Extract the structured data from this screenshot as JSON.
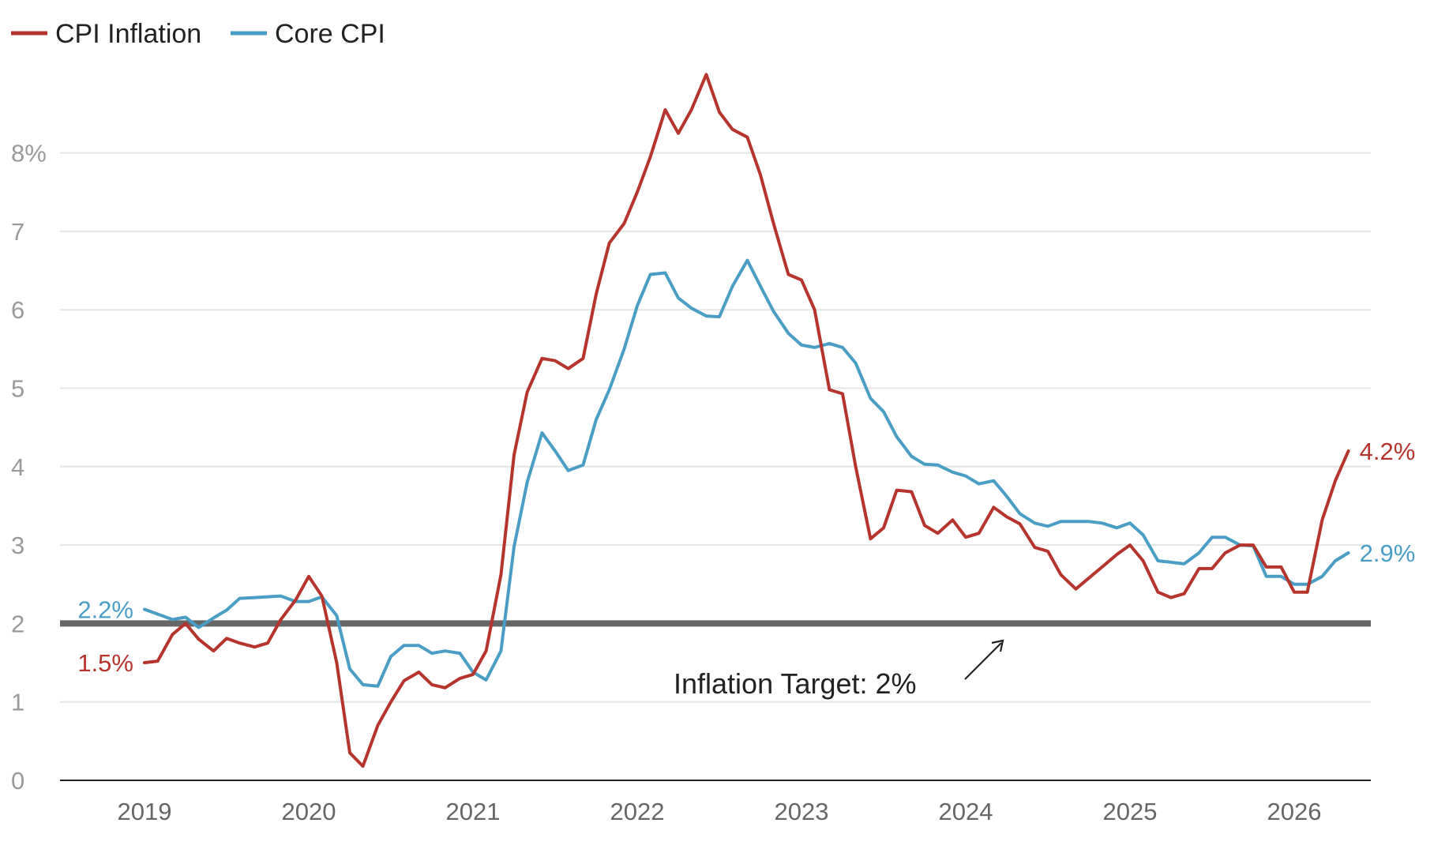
{
  "chart_data": {
    "type": "line",
    "legend_position": "top-left",
    "grid": true,
    "ylim": [
      0,
      9.2
    ],
    "y_ticks": [
      0,
      1,
      2,
      3,
      4,
      5,
      6,
      7,
      8
    ],
    "y_tick_labels": [
      "0",
      "1",
      "2",
      "3",
      "4",
      "5",
      "6",
      "7",
      "8%"
    ],
    "xlim": [
      2018.5,
      2026.5
    ],
    "x_ticks": [
      2019,
      2020,
      2021,
      2022,
      2023,
      2024,
      2025,
      2026
    ],
    "x_tick_labels": [
      "2019",
      "2020",
      "2021",
      "2022",
      "2023",
      "2024",
      "2025",
      "2026"
    ],
    "target": {
      "value": 2,
      "label": "Inflation Target: 2%",
      "color": "#666666"
    },
    "series": [
      {
        "name": "CPI Inflation",
        "color": "#b5342c",
        "end_label": "4.2%",
        "start_label": "1.5%",
        "points": [
          [
            2019.0,
            1.5
          ],
          [
            2019.08,
            1.52
          ],
          [
            2019.17,
            1.86
          ],
          [
            2019.25,
            2.0
          ],
          [
            2019.33,
            1.8
          ],
          [
            2019.42,
            1.65
          ],
          [
            2019.5,
            1.81
          ],
          [
            2019.58,
            1.75
          ],
          [
            2019.67,
            1.7
          ],
          [
            2019.75,
            1.75
          ],
          [
            2019.83,
            2.05
          ],
          [
            2019.92,
            2.3
          ],
          [
            2020.0,
            2.6
          ],
          [
            2020.08,
            2.35
          ],
          [
            2020.17,
            1.5
          ],
          [
            2020.25,
            0.35
          ],
          [
            2020.33,
            0.18
          ],
          [
            2020.42,
            0.7
          ],
          [
            2020.5,
            1.0
          ],
          [
            2020.58,
            1.27
          ],
          [
            2020.67,
            1.38
          ],
          [
            2020.75,
            1.22
          ],
          [
            2020.83,
            1.18
          ],
          [
            2020.92,
            1.3
          ],
          [
            2021.0,
            1.35
          ],
          [
            2021.08,
            1.65
          ],
          [
            2021.17,
            2.62
          ],
          [
            2021.25,
            4.15
          ],
          [
            2021.33,
            4.95
          ],
          [
            2021.42,
            5.38
          ],
          [
            2021.5,
            5.35
          ],
          [
            2021.58,
            5.25
          ],
          [
            2021.67,
            5.38
          ],
          [
            2021.75,
            6.2
          ],
          [
            2021.83,
            6.85
          ],
          [
            2021.92,
            7.1
          ],
          [
            2022.0,
            7.5
          ],
          [
            2022.08,
            7.95
          ],
          [
            2022.17,
            8.55
          ],
          [
            2022.25,
            8.25
          ],
          [
            2022.33,
            8.55
          ],
          [
            2022.42,
            9.0
          ],
          [
            2022.5,
            8.52
          ],
          [
            2022.58,
            8.3
          ],
          [
            2022.67,
            8.2
          ],
          [
            2022.75,
            7.72
          ],
          [
            2022.83,
            7.1
          ],
          [
            2022.92,
            6.45
          ],
          [
            2023.0,
            6.38
          ],
          [
            2023.08,
            6.0
          ],
          [
            2023.17,
            4.98
          ],
          [
            2023.25,
            4.93
          ],
          [
            2023.33,
            4.0
          ],
          [
            2023.42,
            3.08
          ],
          [
            2023.5,
            3.22
          ],
          [
            2023.58,
            3.7
          ],
          [
            2023.67,
            3.68
          ],
          [
            2023.75,
            3.25
          ],
          [
            2023.83,
            3.15
          ],
          [
            2023.92,
            3.32
          ],
          [
            2024.0,
            3.1
          ],
          [
            2024.08,
            3.15
          ],
          [
            2024.17,
            3.48
          ],
          [
            2024.25,
            3.36
          ],
          [
            2024.33,
            3.27
          ],
          [
            2024.42,
            2.97
          ],
          [
            2024.5,
            2.92
          ],
          [
            2024.58,
            2.62
          ],
          [
            2024.67,
            2.44
          ],
          [
            2024.75,
            2.58
          ],
          [
            2024.83,
            2.72
          ],
          [
            2024.92,
            2.88
          ],
          [
            2025.0,
            3.0
          ],
          [
            2025.08,
            2.8
          ],
          [
            2025.17,
            2.4
          ],
          [
            2025.25,
            2.33
          ],
          [
            2025.33,
            2.38
          ],
          [
            2025.42,
            2.7
          ],
          [
            2025.5,
            2.7
          ],
          [
            2025.58,
            2.9
          ],
          [
            2025.67,
            3.0
          ],
          [
            2025.75,
            3.0
          ],
          [
            2025.83,
            2.72
          ],
          [
            2025.92,
            2.72
          ],
          [
            2026.0,
            2.4
          ],
          [
            2026.08,
            2.4
          ],
          [
            2026.17,
            3.32
          ],
          [
            2026.25,
            3.82
          ],
          [
            2026.33,
            4.2
          ]
        ]
      },
      {
        "name": "Core CPI",
        "color": "#4a9ec6",
        "end_label": "2.9%",
        "start_label": "2.2%",
        "points": [
          [
            2019.0,
            2.18
          ],
          [
            2019.08,
            2.12
          ],
          [
            2019.17,
            2.05
          ],
          [
            2019.25,
            2.08
          ],
          [
            2019.33,
            1.95
          ],
          [
            2019.42,
            2.07
          ],
          [
            2019.5,
            2.17
          ],
          [
            2019.58,
            2.32
          ],
          [
            2019.67,
            2.33
          ],
          [
            2019.75,
            2.34
          ],
          [
            2019.83,
            2.35
          ],
          [
            2019.92,
            2.28
          ],
          [
            2020.0,
            2.28
          ],
          [
            2020.08,
            2.34
          ],
          [
            2020.17,
            2.1
          ],
          [
            2020.25,
            1.42
          ],
          [
            2020.33,
            1.22
          ],
          [
            2020.42,
            1.2
          ],
          [
            2020.5,
            1.58
          ],
          [
            2020.58,
            1.72
          ],
          [
            2020.67,
            1.72
          ],
          [
            2020.75,
            1.62
          ],
          [
            2020.83,
            1.65
          ],
          [
            2020.92,
            1.62
          ],
          [
            2021.0,
            1.38
          ],
          [
            2021.08,
            1.28
          ],
          [
            2021.17,
            1.65
          ],
          [
            2021.25,
            2.98
          ],
          [
            2021.33,
            3.8
          ],
          [
            2021.42,
            4.43
          ],
          [
            2021.5,
            4.2
          ],
          [
            2021.58,
            3.95
          ],
          [
            2021.67,
            4.02
          ],
          [
            2021.75,
            4.6
          ],
          [
            2021.83,
            4.98
          ],
          [
            2021.92,
            5.5
          ],
          [
            2022.0,
            6.05
          ],
          [
            2022.08,
            6.45
          ],
          [
            2022.17,
            6.47
          ],
          [
            2022.25,
            6.15
          ],
          [
            2022.33,
            6.02
          ],
          [
            2022.42,
            5.92
          ],
          [
            2022.5,
            5.91
          ],
          [
            2022.58,
            6.3
          ],
          [
            2022.67,
            6.63
          ],
          [
            2022.75,
            6.3
          ],
          [
            2022.83,
            5.98
          ],
          [
            2022.92,
            5.7
          ],
          [
            2023.0,
            5.55
          ],
          [
            2023.08,
            5.52
          ],
          [
            2023.17,
            5.57
          ],
          [
            2023.25,
            5.52
          ],
          [
            2023.33,
            5.32
          ],
          [
            2023.42,
            4.87
          ],
          [
            2023.5,
            4.7
          ],
          [
            2023.58,
            4.38
          ],
          [
            2023.67,
            4.13
          ],
          [
            2023.75,
            4.03
          ],
          [
            2023.83,
            4.02
          ],
          [
            2023.92,
            3.93
          ],
          [
            2024.0,
            3.88
          ],
          [
            2024.08,
            3.78
          ],
          [
            2024.17,
            3.82
          ],
          [
            2024.25,
            3.62
          ],
          [
            2024.33,
            3.4
          ],
          [
            2024.42,
            3.28
          ],
          [
            2024.5,
            3.24
          ],
          [
            2024.58,
            3.3
          ],
          [
            2024.67,
            3.3
          ],
          [
            2024.75,
            3.3
          ],
          [
            2024.83,
            3.28
          ],
          [
            2024.92,
            3.22
          ],
          [
            2025.0,
            3.28
          ],
          [
            2025.08,
            3.13
          ],
          [
            2025.17,
            2.8
          ],
          [
            2025.25,
            2.78
          ],
          [
            2025.33,
            2.76
          ],
          [
            2025.42,
            2.9
          ],
          [
            2025.5,
            3.1
          ],
          [
            2025.58,
            3.1
          ],
          [
            2025.67,
            3.0
          ],
          [
            2025.75,
            2.99
          ],
          [
            2025.83,
            2.6
          ],
          [
            2025.92,
            2.6
          ],
          [
            2026.0,
            2.5
          ],
          [
            2026.08,
            2.5
          ],
          [
            2026.17,
            2.6
          ],
          [
            2026.25,
            2.8
          ],
          [
            2026.33,
            2.9
          ]
        ]
      }
    ]
  }
}
